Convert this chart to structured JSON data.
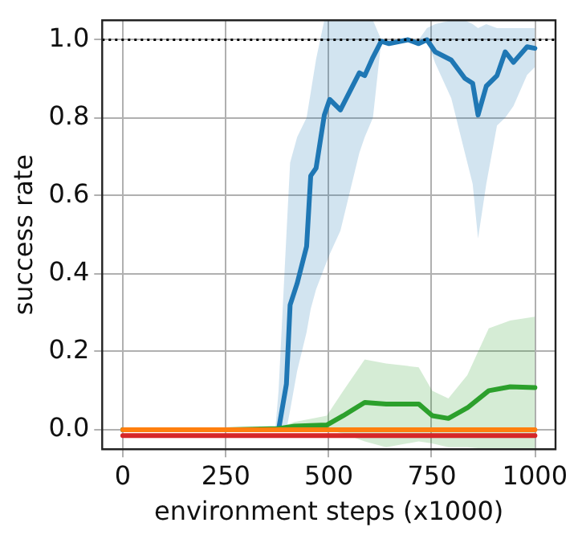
{
  "chart_data": {
    "type": "line",
    "xlabel": "environment steps (x1000)",
    "ylabel": "success rate",
    "xlim": [
      -50,
      1050
    ],
    "ylim": [
      -0.05,
      1.05
    ],
    "xticks": [
      0,
      250,
      500,
      750,
      1000
    ],
    "yticks": [
      {
        "value": 0,
        "label": "0.0"
      },
      0.2,
      0.4,
      0.6,
      0.8,
      {
        "value": 1,
        "label": "1.0"
      }
    ],
    "grid": true,
    "legend": false,
    "marker": "none",
    "line_style": "solid",
    "ref_lines": [
      {
        "axis": "y",
        "value": 1.0,
        "color": "#000000",
        "line_style": "dotted"
      }
    ],
    "series": [
      {
        "color": "#ff7f0e",
        "x": [
          0,
          1000
        ],
        "values": [
          0,
          0
        ]
      },
      {
        "color": "#d62728",
        "x": [
          0,
          1000
        ],
        "values": [
          -0.015,
          -0.015
        ]
      },
      {
        "color": "#2ca02c",
        "x": [
          0,
          250,
          378,
          417,
          495,
          535,
          587,
          639,
          718,
          751,
          790,
          836,
          888,
          940,
          1000
        ],
        "values": [
          0,
          0,
          0.003,
          0.009,
          0.012,
          0.036,
          0.07,
          0.066,
          0.066,
          0.036,
          0.029,
          0.056,
          0.1,
          0.11,
          0.108
        ],
        "lower": [
          0,
          0,
          0,
          0,
          0,
          -0.01,
          -0.03,
          -0.045,
          -0.03,
          -0.035,
          -0.045,
          -0.045,
          -0.05,
          -0.05,
          -0.05
        ],
        "upper": [
          0,
          0,
          0.005,
          0.02,
          0.036,
          0.1,
          0.18,
          0.17,
          0.16,
          0.1,
          0.08,
          0.14,
          0.26,
          0.28,
          0.29
        ]
      },
      {
        "color": "#1f77b4",
        "x": [
          0,
          370,
          378,
          397,
          406,
          423,
          446,
          456,
          469,
          489,
          502,
          528,
          574,
          587,
          607,
          627,
          646,
          692,
          718,
          738,
          758,
          797,
          830,
          849,
          862,
          882,
          908,
          928,
          948,
          981,
          1000
        ],
        "values": [
          0,
          0,
          0,
          0.117,
          0.32,
          0.375,
          0.47,
          0.651,
          0.671,
          0.807,
          0.847,
          0.82,
          0.915,
          0.908,
          0.955,
          0.996,
          0.99,
          1.0,
          0.99,
          1.0,
          0.969,
          0.948,
          0.901,
          0.888,
          0.807,
          0.881,
          0.908,
          0.969,
          0.942,
          0.982,
          0.978
        ],
        "lower": [
          0,
          0,
          0,
          0,
          0.05,
          0.15,
          0.25,
          0.31,
          0.36,
          0.415,
          0.45,
          0.51,
          0.71,
          0.75,
          0.8,
          0.996,
          0.99,
          1.0,
          0.99,
          1.0,
          0.94,
          0.85,
          0.71,
          0.63,
          0.49,
          0.63,
          0.78,
          0.8,
          0.83,
          0.91,
          0.93
        ],
        "upper": [
          0,
          0,
          0.1,
          0.5,
          0.685,
          0.75,
          0.8,
          0.865,
          0.95,
          1.05,
          1.05,
          1.05,
          1.05,
          1.05,
          1.05,
          1.0,
          1.0,
          1.0,
          1.0,
          1.03,
          1.04,
          1.05,
          1.05,
          1.04,
          1.03,
          1.04,
          1.03,
          1.03,
          1.03,
          1.03,
          1.03
        ]
      }
    ]
  }
}
